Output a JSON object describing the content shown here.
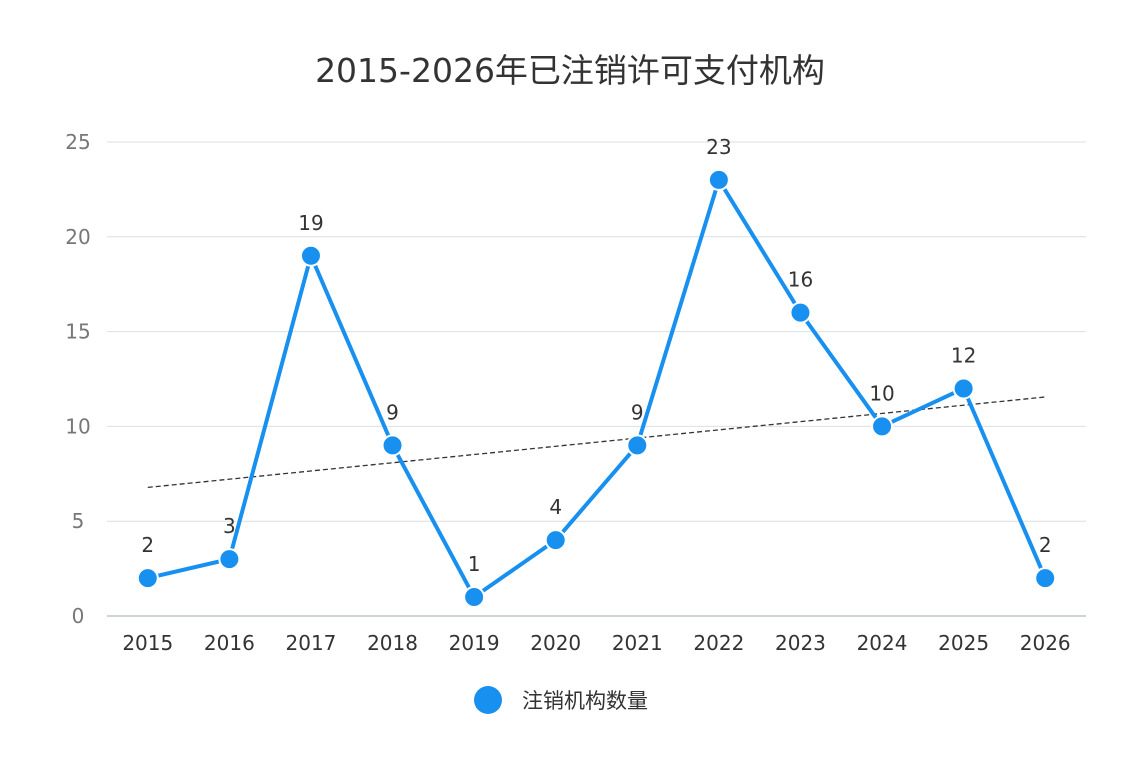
{
  "chart_data": {
    "type": "line",
    "title": "2015-2026年已注销许可支付机构",
    "xlabel": "",
    "ylabel": "",
    "categories": [
      "2015",
      "2016",
      "2017",
      "2018",
      "2019",
      "2020",
      "2021",
      "2022",
      "2023",
      "2024",
      "2025",
      "2026"
    ],
    "series": [
      {
        "name": "注销机构数量",
        "values": [
          2,
          3,
          19,
          9,
          1,
          4,
          9,
          23,
          16,
          10,
          12,
          2
        ],
        "color": "#1890f0"
      }
    ],
    "ylim": [
      0,
      25
    ],
    "yticks": [
      "0",
      "5",
      "10",
      "15",
      "20",
      "25"
    ],
    "trendline": {
      "type": "linear",
      "style": "dashed",
      "color": "#333333"
    },
    "data_labels": true,
    "grid": true,
    "legend_position": "bottom"
  }
}
